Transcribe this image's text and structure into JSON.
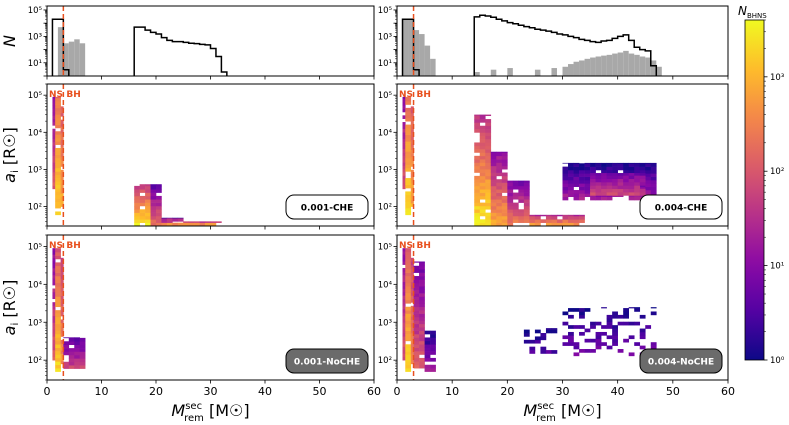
{
  "figure": {
    "shared_xlabel": "M",
    "shared_xlabel_sup": "sec",
    "shared_xlabel_sub": "rem",
    "shared_xlabel_unit": "[M☉]",
    "colorbar_label": "N",
    "colorbar_label_sub": "BHNS",
    "colorbar_ticks": [
      "10⁰",
      "10¹",
      "10²",
      "10³"
    ],
    "colorbar_tick_values": [
      1,
      10,
      100,
      1000
    ],
    "colorbar_range": [
      1,
      4000
    ],
    "colormap": "plasma",
    "ns_label": "NS",
    "bh_label": "BH",
    "divider_value": 3,
    "divider_color": "#e8501e",
    "hist_line_color": "#000000",
    "hist_fill_color": "#a8a8a8",
    "cmap_stops": [
      "#0d0887",
      "#5302a3",
      "#8b0aa5",
      "#b83289",
      "#db5c68",
      "#f48849",
      "#febd2a",
      "#f0f921"
    ]
  },
  "chart_data": [
    {
      "id": "hist-left",
      "type": "bar",
      "title": "",
      "ylabel": "N",
      "xlabel": "",
      "xlim": [
        0,
        60
      ],
      "ylim": [
        1,
        200000
      ],
      "yscale": "log",
      "yticks": [
        "10¹",
        "10³",
        "10⁵"
      ],
      "bin_width": 1,
      "series": [
        {
          "name": "CHE (step outline)",
          "bins": [
            [
              1,
              2,
              20000
            ],
            [
              2,
              3,
              20000
            ],
            [
              3,
              4,
              3
            ],
            [
              16,
              17,
              5000
            ],
            [
              17,
              18,
              5000
            ],
            [
              18,
              19,
              3000
            ],
            [
              19,
              20,
              2000
            ],
            [
              20,
              21,
              1500
            ],
            [
              21,
              22,
              800
            ],
            [
              22,
              23,
              500
            ],
            [
              23,
              24,
              400
            ],
            [
              24,
              25,
              400
            ],
            [
              25,
              26,
              350
            ],
            [
              26,
              27,
              300
            ],
            [
              27,
              28,
              280
            ],
            [
              28,
              29,
              250
            ],
            [
              29,
              30,
              230
            ],
            [
              30,
              31,
              120
            ],
            [
              31,
              32,
              30
            ],
            [
              32,
              33,
              2
            ]
          ]
        },
        {
          "name": "NoCHE (filled)",
          "bins": [
            [
              2,
              3,
              5000
            ],
            [
              3,
              4,
              300
            ],
            [
              4,
              5,
              400
            ],
            [
              5,
              6,
              600
            ],
            [
              6,
              7,
              300
            ]
          ]
        }
      ]
    },
    {
      "id": "hist-right",
      "type": "bar",
      "title": "",
      "ylabel": "",
      "xlabel": "",
      "xlim": [
        0,
        60
      ],
      "ylim": [
        1,
        200000
      ],
      "yscale": "log",
      "yticks": [
        "10¹",
        "10³",
        "10⁵"
      ],
      "bin_width": 1,
      "series": [
        {
          "name": "CHE (step outline)",
          "bins": [
            [
              1,
              2,
              20000
            ],
            [
              2,
              3,
              20000
            ],
            [
              3,
              4,
              3
            ],
            [
              14,
              15,
              30000
            ],
            [
              15,
              16,
              40000
            ],
            [
              16,
              17,
              35000
            ],
            [
              17,
              18,
              28000
            ],
            [
              18,
              19,
              20000
            ],
            [
              19,
              20,
              15000
            ],
            [
              20,
              21,
              11000
            ],
            [
              21,
              22,
              9000
            ],
            [
              22,
              23,
              7000
            ],
            [
              23,
              24,
              5500
            ],
            [
              24,
              25,
              4500
            ],
            [
              25,
              26,
              3500
            ],
            [
              26,
              27,
              3000
            ],
            [
              27,
              28,
              2500
            ],
            [
              28,
              29,
              2000
            ],
            [
              29,
              30,
              1500
            ],
            [
              30,
              31,
              1300
            ],
            [
              31,
              32,
              1000
            ],
            [
              32,
              33,
              800
            ],
            [
              33,
              34,
              600
            ],
            [
              34,
              35,
              500
            ],
            [
              35,
              36,
              400
            ],
            [
              36,
              37,
              350
            ],
            [
              37,
              38,
              450
            ],
            [
              38,
              39,
              500
            ],
            [
              39,
              40,
              700
            ],
            [
              40,
              41,
              1000
            ],
            [
              41,
              42,
              1300
            ],
            [
              42,
              43,
              500
            ],
            [
              43,
              44,
              150
            ],
            [
              44,
              45,
              100
            ],
            [
              45,
              46,
              80
            ],
            [
              46,
              47,
              6
            ]
          ]
        },
        {
          "name": "NoCHE (filled)",
          "bins": [
            [
              1,
              2,
              20000
            ],
            [
              2,
              3,
              20000
            ],
            [
              3,
              4,
              3000
            ],
            [
              4,
              5,
              1500
            ],
            [
              5,
              6,
              200
            ],
            [
              6,
              7,
              20
            ],
            [
              14,
              15,
              2
            ],
            [
              17,
              18,
              3
            ],
            [
              20,
              21,
              4
            ],
            [
              25,
              26,
              3
            ],
            [
              28,
              29,
              4
            ],
            [
              30,
              31,
              5
            ],
            [
              31,
              32,
              8
            ],
            [
              32,
              33,
              12
            ],
            [
              33,
              34,
              15
            ],
            [
              34,
              35,
              20
            ],
            [
              35,
              36,
              25
            ],
            [
              36,
              37,
              30
            ],
            [
              37,
              38,
              35
            ],
            [
              38,
              39,
              40
            ],
            [
              39,
              40,
              50
            ],
            [
              40,
              41,
              60
            ],
            [
              41,
              42,
              80
            ],
            [
              42,
              43,
              50
            ],
            [
              43,
              44,
              40
            ],
            [
              44,
              45,
              30
            ],
            [
              45,
              46,
              25
            ],
            [
              46,
              47,
              15
            ],
            [
              47,
              48,
              5
            ]
          ]
        }
      ]
    },
    {
      "id": "heat-0.001-CHE",
      "type": "heatmap",
      "title": "",
      "panel_label": "0.001-CHE",
      "label_box_dark": false,
      "ylabel": "a",
      "ylabel_sub": "i",
      "ylabel_unit": "[R☉]",
      "xlabel": "",
      "xlim": [
        0,
        60
      ],
      "ylim": [
        30,
        200000
      ],
      "yscale": "log",
      "yticks": [
        "10²",
        "10³",
        "10⁴",
        "10⁵"
      ],
      "xticks": [],
      "blobs": [
        {
          "x": [
            1,
            1.5
          ],
          "y": [
            300,
            90000
          ],
          "c": [
            10,
            100
          ]
        },
        {
          "x": [
            1.5,
            2.5
          ],
          "y": [
            60,
            90000
          ],
          "c": [
            200,
            2000
          ]
        },
        {
          "x": [
            2.5,
            3
          ],
          "y": [
            100,
            50000
          ],
          "c": [
            100,
            800
          ]
        },
        {
          "x": [
            16,
            19
          ],
          "y": [
            30,
            400
          ],
          "c": [
            30,
            3000
          ]
        },
        {
          "x": [
            19,
            21
          ],
          "y": [
            30,
            400
          ],
          "c": [
            3,
            200
          ]
        },
        {
          "x": [
            21,
            32
          ],
          "y": [
            30,
            40
          ],
          "c": [
            20,
            400
          ]
        },
        {
          "x": [
            21,
            25
          ],
          "y": [
            40,
            50
          ],
          "c": [
            2,
            30
          ]
        }
      ]
    },
    {
      "id": "heat-0.004-CHE",
      "type": "heatmap",
      "title": "",
      "panel_label": "0.004-CHE",
      "label_box_dark": false,
      "ylabel": "",
      "xlabel": "",
      "xlim": [
        0,
        60
      ],
      "ylim": [
        30,
        200000
      ],
      "yscale": "log",
      "yticks": [
        "10²",
        "10³",
        "10⁴",
        "10⁵"
      ],
      "xticks": [],
      "blobs": [
        {
          "x": [
            1,
            1.5
          ],
          "y": [
            300,
            90000
          ],
          "c": [
            10,
            100
          ]
        },
        {
          "x": [
            1.5,
            2.5
          ],
          "y": [
            60,
            90000
          ],
          "c": [
            200,
            2000
          ]
        },
        {
          "x": [
            2.5,
            3
          ],
          "y": [
            100,
            50000
          ],
          "c": [
            100,
            800
          ]
        },
        {
          "x": [
            14,
            17
          ],
          "y": [
            30,
            30000
          ],
          "c": [
            30,
            3000
          ]
        },
        {
          "x": [
            17,
            20
          ],
          "y": [
            30,
            3000
          ],
          "c": [
            10,
            800
          ]
        },
        {
          "x": [
            20,
            24
          ],
          "y": [
            30,
            500
          ],
          "c": [
            5,
            300
          ]
        },
        {
          "x": [
            24,
            34
          ],
          "y": [
            30,
            60
          ],
          "c": [
            20,
            500
          ]
        },
        {
          "x": [
            30,
            47
          ],
          "y": [
            150,
            1500
          ],
          "c": [
            1,
            20
          ]
        },
        {
          "x": [
            35,
            45
          ],
          "y": [
            200,
            800
          ],
          "c": [
            5,
            60
          ]
        }
      ]
    },
    {
      "id": "heat-0.001-NoCHE",
      "type": "heatmap",
      "title": "",
      "panel_label": "0.001-NoCHE",
      "label_box_dark": true,
      "ylabel": "a",
      "ylabel_sub": "i",
      "ylabel_unit": "[R☉]",
      "xlabel": "M_rem^sec [M☉]",
      "xlim": [
        0,
        60
      ],
      "ylim": [
        30,
        200000
      ],
      "yscale": "log",
      "yticks": [
        "10²",
        "10³",
        "10⁴",
        "10⁵"
      ],
      "xticks": [
        "0",
        "10",
        "20",
        "30",
        "40",
        "50",
        "60"
      ],
      "blobs": [
        {
          "x": [
            1,
            1.5
          ],
          "y": [
            100,
            90000
          ],
          "c": [
            10,
            100
          ]
        },
        {
          "x": [
            1.5,
            2.5
          ],
          "y": [
            50,
            90000
          ],
          "c": [
            100,
            2000
          ]
        },
        {
          "x": [
            2.5,
            3
          ],
          "y": [
            80,
            50000
          ],
          "c": [
            50,
            500
          ]
        },
        {
          "x": [
            3,
            7
          ],
          "y": [
            60,
            400
          ],
          "c": [
            3,
            60
          ]
        }
      ]
    },
    {
      "id": "heat-0.004-NoCHE",
      "type": "heatmap",
      "title": "",
      "panel_label": "0.004-NoCHE",
      "label_box_dark": true,
      "ylabel": "",
      "xlabel": "M_rem^sec [M☉]",
      "xlim": [
        0,
        60
      ],
      "ylim": [
        30,
        200000
      ],
      "yscale": "log",
      "yticks": [
        "10²",
        "10³",
        "10⁴",
        "10⁵"
      ],
      "xticks": [
        "0",
        "10",
        "20",
        "30",
        "40",
        "50",
        "60"
      ],
      "blobs": [
        {
          "x": [
            1,
            1.5
          ],
          "y": [
            100,
            90000
          ],
          "c": [
            10,
            100
          ]
        },
        {
          "x": [
            1.5,
            2.5
          ],
          "y": [
            50,
            90000
          ],
          "c": [
            100,
            2000
          ]
        },
        {
          "x": [
            2.5,
            3
          ],
          "y": [
            80,
            50000
          ],
          "c": [
            50,
            500
          ]
        },
        {
          "x": [
            3,
            5
          ],
          "y": [
            50,
            40000
          ],
          "c": [
            5,
            150
          ]
        },
        {
          "x": [
            5,
            7
          ],
          "y": [
            50,
            600
          ],
          "c": [
            1,
            20
          ]
        },
        {
          "x": [
            23,
            30
          ],
          "y": [
            150,
            700
          ],
          "c": [
            1,
            3
          ]
        },
        {
          "x": [
            30,
            47
          ],
          "y": [
            130,
            2500
          ],
          "c": [
            1,
            6
          ]
        }
      ]
    }
  ]
}
